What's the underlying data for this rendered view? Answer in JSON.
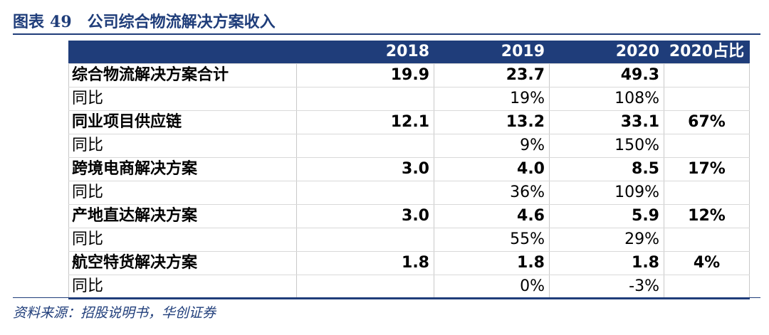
{
  "figure": {
    "label": "图表",
    "number": "49",
    "title": "公司综合物流解决方案收入"
  },
  "table": {
    "header": [
      "",
      "2018",
      "2019",
      "2020",
      "2020占比"
    ],
    "rows": [
      {
        "kind": "main",
        "cells": [
          "综合物流解决方案合计",
          "19.9",
          "23.7",
          "49.3",
          ""
        ]
      },
      {
        "kind": "sub",
        "cells": [
          "同比",
          "",
          "19%",
          "108%",
          ""
        ]
      },
      {
        "kind": "main",
        "cells": [
          "同业项目供应链",
          "12.1",
          "13.2",
          "33.1",
          "67%"
        ]
      },
      {
        "kind": "sub",
        "cells": [
          "同比",
          "",
          "9%",
          "150%",
          ""
        ]
      },
      {
        "kind": "main",
        "cells": [
          "跨境电商解决方案",
          "3.0",
          "4.0",
          "8.5",
          "17%"
        ]
      },
      {
        "kind": "sub",
        "cells": [
          "同比",
          "",
          "36%",
          "109%",
          ""
        ]
      },
      {
        "kind": "main",
        "cells": [
          "产地直达解决方案",
          "3.0",
          "4.6",
          "5.9",
          "12%"
        ]
      },
      {
        "kind": "sub",
        "cells": [
          "同比",
          "",
          "55%",
          "29%",
          ""
        ]
      },
      {
        "kind": "main",
        "cells": [
          "航空特货解决方案",
          "1.8",
          "1.8",
          "1.8",
          "4%"
        ]
      },
      {
        "kind": "sub",
        "cells": [
          "同比",
          "",
          "0%",
          "-3%",
          ""
        ]
      }
    ]
  },
  "source": "资料来源：招股说明书，华创证券",
  "colors": {
    "header_bg": "#1f3d7a",
    "header_text": "#ffffff",
    "title_text": "#1f3d7a"
  }
}
